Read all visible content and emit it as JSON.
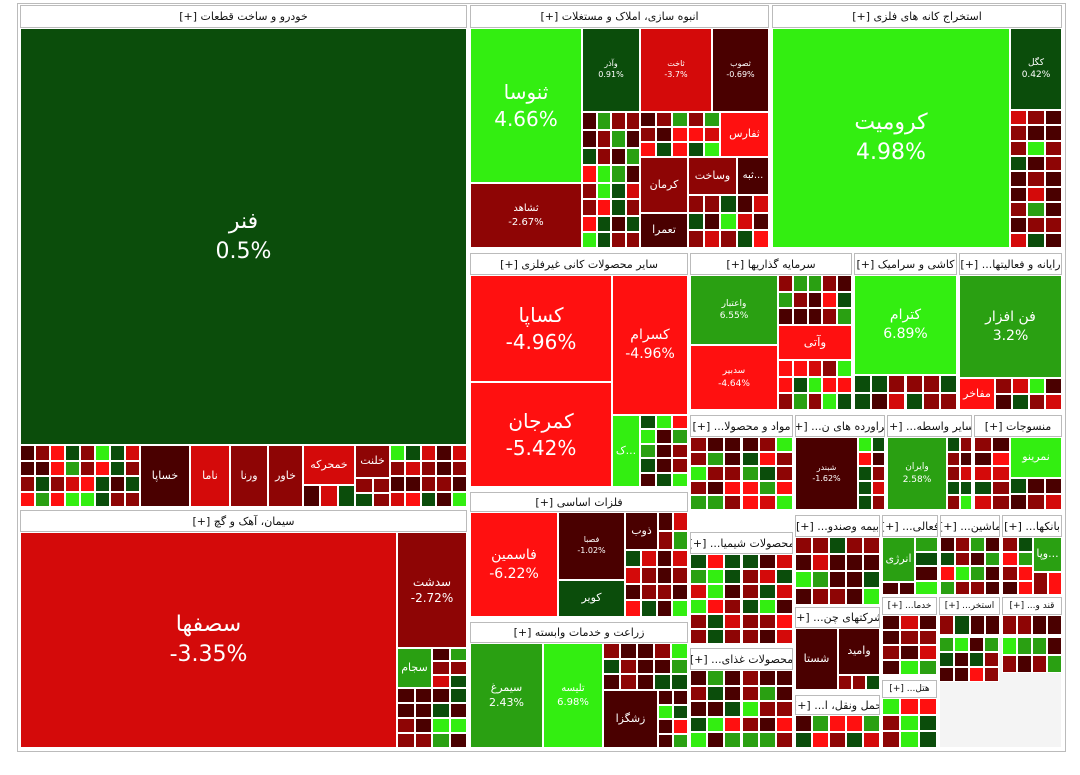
{
  "sectors": [
    {
      "title": "خودرو و ساخت قطعات [+]",
      "tiles": [
        {
          "label": "فنر",
          "change": "0.5%"
        },
        {
          "label": "خلنت"
        },
        {
          "label": "خمحرکه"
        },
        {
          "label": "خاور"
        },
        {
          "label": "ورنا"
        },
        {
          "label": "ناما"
        },
        {
          "label": "خساپا"
        }
      ]
    },
    {
      "title": "سیمان، آهک و گچ [+]",
      "tiles": [
        {
          "label": "سصفها",
          "change": "-3.35%"
        },
        {
          "label": "سدشت",
          "change": "-2.72%"
        },
        {
          "label": "سجام"
        }
      ]
    },
    {
      "title": "انبوه سازی، املاک و مستغلات [+]",
      "tiles": [
        {
          "label": "ثنوسا",
          "change": "4.66%"
        },
        {
          "label": "ثشاهد",
          "change": "-2.67%"
        },
        {
          "label": "وآذر",
          "change": "0.91%"
        },
        {
          "label": "ثاخت",
          "change": "-3.7%"
        },
        {
          "label": "ثصوب",
          "change": "-0.69%"
        },
        {
          "label": "ثفارس"
        },
        {
          "label": "کرمان"
        },
        {
          "label": "وساخت"
        },
        {
          "label": "تعمرا"
        },
        {
          "label": "ثبه..."
        }
      ]
    },
    {
      "title": "استخراج کانه های فلزی [+]",
      "tiles": [
        {
          "label": "کرومیت",
          "change": "4.98%"
        },
        {
          "label": "کگل",
          "change": "0.42%"
        }
      ]
    },
    {
      "title": "سایر محصولات کانی غیرفلزی [+]",
      "tiles": [
        {
          "label": "کساپا",
          "change": "-4.96%"
        },
        {
          "label": "کمرجان",
          "change": "-5.42%"
        },
        {
          "label": "کسرام",
          "change": "-4.96%"
        },
        {
          "label": "ک..."
        }
      ]
    },
    {
      "title": "سرمایه گذاریها [+]",
      "tiles": [
        {
          "label": "واعتبار",
          "change": "6.55%"
        },
        {
          "label": "سدبیر",
          "change": "-4.64%"
        },
        {
          "label": "وآتی"
        }
      ]
    },
    {
      "title": "کاشی و سرامیک [+]",
      "tiles": [
        {
          "label": "کترام",
          "change": "6.89%"
        }
      ]
    },
    {
      "title": "رایانه و فعالیتها... [+]",
      "tiles": [
        {
          "label": "فن افزار",
          "change": "3.2%"
        },
        {
          "label": "مفاخر"
        }
      ]
    },
    {
      "title": "فلزات اساسی [+]",
      "tiles": [
        {
          "label": "فاسمین",
          "change": "-6.22%"
        },
        {
          "label": "فصبا",
          "change": "-1.02%"
        },
        {
          "label": "کویر"
        },
        {
          "label": "ذوب"
        }
      ]
    },
    {
      "title": "زراعت و خدمات وابسته [+]",
      "tiles": [
        {
          "label": "سیمرغ",
          "change": "2.43%"
        },
        {
          "label": "تلیسه",
          "change": "6.98%"
        },
        {
          "label": "زشگزا"
        }
      ]
    },
    {
      "title": "مواد و محصولا... [+]",
      "tiles": []
    },
    {
      "title": "فراورده های ن... [+]",
      "tiles": [
        {
          "label": "شبندر",
          "change": "-1.62%"
        }
      ]
    },
    {
      "title": "سایر واسطه... [+]",
      "tiles": [
        {
          "label": "وایران",
          "change": "2.58%"
        }
      ]
    },
    {
      "title": "منسوجات [+]",
      "tiles": [
        {
          "label": "نمرینو"
        }
      ]
    },
    {
      "title": "بیمه وصندو... [+]",
      "tiles": []
    },
    {
      "title": "فعالی... [+]",
      "tiles": [
        {
          "label": "انرژی"
        }
      ]
    },
    {
      "title": "ماشین... [+]",
      "tiles": []
    },
    {
      "title": "بانکها... [+]",
      "tiles": [
        {
          "label": "وپا..."
        }
      ]
    },
    {
      "title": "محصولات شیمیا... [+]",
      "tiles": []
    },
    {
      "title": "شرکتهای چن... [+]",
      "tiles": [
        {
          "label": "شستا"
        },
        {
          "label": "وامید"
        }
      ]
    },
    {
      "title": "خدما... [+]",
      "tiles": []
    },
    {
      "title": "استخر... [+]",
      "tiles": []
    },
    {
      "title": "قند و... [+]",
      "tiles": []
    },
    {
      "title": "محصولات غذای... [+]",
      "tiles": []
    },
    {
      "title": "حمل ونقل، ا... [+]",
      "tiles": []
    },
    {
      "title": "هتل... [+]",
      "tiles": []
    }
  ]
}
